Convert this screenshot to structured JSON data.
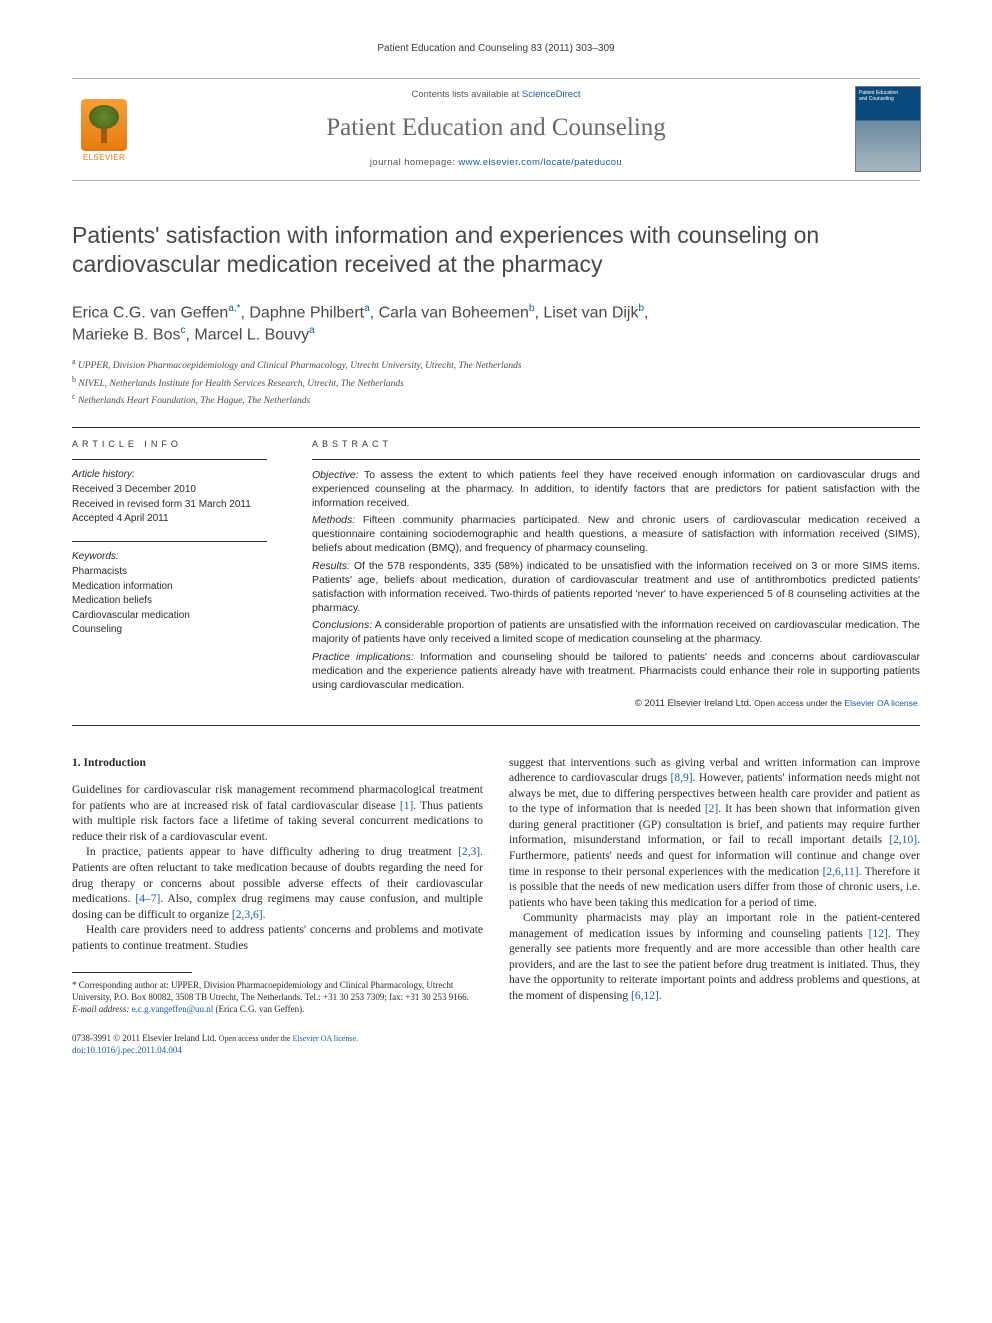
{
  "running_head": "Patient Education and Counseling 83 (2011) 303–309",
  "masthead": {
    "publisher": "ELSEVIER",
    "contents_line_prefix": "Contents lists available at ",
    "contents_link": "ScienceDirect",
    "journal_title": "Patient Education and Counseling",
    "homepage_prefix": "journal homepage: ",
    "homepage_url": "www.elsevier.com/locate/pateducou",
    "cover_title_line1": "Patient Education",
    "cover_title_line2": "and Counseling"
  },
  "article": {
    "title": "Patients' satisfaction with information and experiences with counseling on cardiovascular medication received at the pharmacy",
    "authors_html_parts": {
      "a1": "Erica C.G. van Geffen",
      "a1s": "a,",
      "a1star": "*",
      "a2": "Daphne Philbert",
      "a2s": "a",
      "a3": "Carla van Boheemen",
      "a3s": "b",
      "a4": "Liset van Dijk",
      "a4s": "b",
      "a5": "Marieke B. Bos",
      "a5s": "c",
      "a6": "Marcel L. Bouvy",
      "a6s": "a"
    },
    "affiliations": {
      "a": "UPPER, Division Pharmacoepidemiology and Clinical Pharmacology, Utrecht University, Utrecht, The Netherlands",
      "b": "NIVEL, Netherlands Institute for Health Services Research, Utrecht, The Netherlands",
      "c": "Netherlands Heart Foundation, The Hague, The Netherlands"
    }
  },
  "info": {
    "head": "ARTICLE INFO",
    "history_label": "Article history:",
    "history": [
      "Received 3 December 2010",
      "Received in revised form 31 March 2011",
      "Accepted 4 April 2011"
    ],
    "keywords_label": "Keywords:",
    "keywords": [
      "Pharmacists",
      "Medication information",
      "Medication beliefs",
      "Cardiovascular medication",
      "Counseling"
    ]
  },
  "abstract": {
    "head": "ABSTRACT",
    "objective_lead": "Objective:",
    "objective": " To assess the extent to which patients feel they have received enough information on cardiovascular drugs and experienced counseling at the pharmacy. In addition, to identify factors that are predictors for patient satisfaction with the information received.",
    "methods_lead": "Methods:",
    "methods": " Fifteen community pharmacies participated. New and chronic users of cardiovascular medication received a questionnaire containing sociodemographic and health questions, a measure of satisfaction with information received (SIMS), beliefs about medication (BMQ), and frequency of pharmacy counseling.",
    "results_lead": "Results:",
    "results": " Of the 578 respondents, 335 (58%) indicated to be unsatisfied with the information received on 3 or more SIMS items. Patients' age, beliefs about medication, duration of cardiovascular treatment and use of antithrombotics predicted patients' satisfaction with information received. Two-thirds of patients reported 'never' to have experienced 5 of 8 counseling activities at the pharmacy.",
    "conclusions_lead": "Conclusions:",
    "conclusions": " A considerable proportion of patients are unsatisfied with the information received on cardiovascular medication. The majority of patients have only received a limited scope of medication counseling at the pharmacy.",
    "practice_lead": "Practice implications:",
    "practice": " Information and counseling should be tailored to patients' needs and concerns about cardiovascular medication and the experience patients already have with treatment. Pharmacists could enhance their role in supporting patients using cardiovascular medication.",
    "copyright_prefix": "© 2011 Elsevier Ireland Ltd. ",
    "copyright_open": "Open access under the ",
    "copyright_link": "Elsevier OA license."
  },
  "body": {
    "section_heading": "1. Introduction",
    "left": {
      "p1": "Guidelines for cardiovascular risk management recommend pharmacological treatment for patients who are at increased risk of fatal cardiovascular disease [1]. Thus patients with multiple risk factors face a lifetime of taking several concurrent medications to reduce their risk of a cardiovascular event.",
      "p2": "In practice, patients appear to have difficulty adhering to drug treatment [2,3]. Patients are often reluctant to take medication because of doubts regarding the need for drug therapy or concerns about possible adverse effects of their cardiovascular medications. [4–7]. Also, complex drug regimens may cause confusion, and multiple dosing can be difficult to organize [2,3,6].",
      "p3": "Health care providers need to address patients' concerns and problems and motivate patients to continue treatment. Studies"
    },
    "right": {
      "p1": "suggest that interventions such as giving verbal and written information can improve adherence to cardiovascular drugs [8,9]. However, patients' information needs might not always be met, due to differing perspectives between health care provider and patient as to the type of information that is needed [2]. It has been shown that information given during general practitioner (GP) consultation is brief, and patients may require further information, misunderstand information, or fail to recall important details [2,10]. Furthermore, patients' needs and quest for information will continue and change over time in response to their personal experiences with the medication [2,6,11]. Therefore it is possible that the needs of new medication users differ from those of chronic users, i.e. patients who have been taking this medication for a period of time.",
      "p2": "Community pharmacists may play an important role in the patient-centered management of medication issues by informing and counseling patients [12]. They generally see patients more frequently and are more accessible than other health care providers, and are the last to see the patient before drug treatment is initiated. Thus, they have the opportunity to reiterate important points and address problems and questions, at the moment of dispensing [6,12]."
    },
    "refs": {
      "r1": "[1]",
      "r23": "[2,3]",
      "r47": "[4–7]",
      "r236": "[2,3,6]",
      "r89": "[8,9]",
      "r2": "[2]",
      "r210": "[2,10]",
      "r2611": "[2,6,11]",
      "r12": "[12]",
      "r612": "[6,12]"
    }
  },
  "footnotes": {
    "corr": "* Corresponding author at: UPPER, Division Pharmacoepidemiology and Clinical Pharmacology, Utrecht University, P.O. Box 80082, 3508 TB Utrecht, The Netherlands. Tel.: +31 30 253 7309; fax: +31 30 253 9166.",
    "email_label": "E-mail address: ",
    "email": "e.c.g.vangeffen@uu.nl",
    "email_who": " (Erica C.G. van Geffen)."
  },
  "footer": {
    "issn_line_prefix": "0738-3991 © 2011 Elsevier Ireland Ltd. ",
    "open_text": "Open access under the ",
    "open_link": "Elsevier OA license.",
    "doi": "doi:10.1016/j.pec.2011.04.004"
  },
  "colors": {
    "link": "#1a5aa8",
    "text": "#2a2a2a",
    "grey_title": "#6a6a6a",
    "rule": "#333333",
    "publisher_orange": "#e67a12"
  },
  "typography": {
    "running_head_pt": 10,
    "journal_title_pt": 25,
    "article_title_pt": 23,
    "authors_pt": 16,
    "affil_pt": 9.5,
    "abstract_pt": 10.5,
    "body_pt": 11.5,
    "footnote_pt": 9
  }
}
